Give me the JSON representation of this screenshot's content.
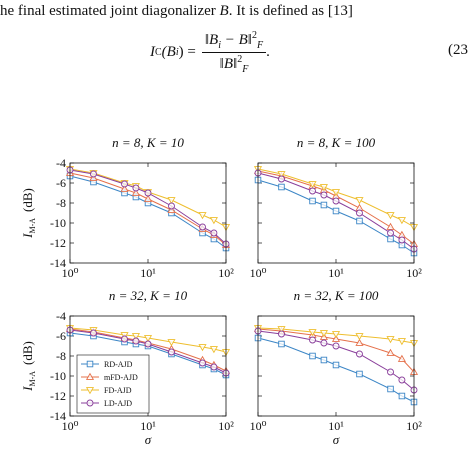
{
  "paragraph": {
    "before": "he final estimated joint diagonalizer ",
    "symbol": "B",
    "after": ". It is defined as [13]"
  },
  "equation": {
    "lhs": "I",
    "lhs_sub": "C",
    "lhs_arg": "(B",
    "lhs_arg_sub": "i",
    "lhs_close": ") =",
    "num_open": "‖B",
    "num_sub": "i",
    "num_rest": " − B‖",
    "den": "‖B‖",
    "norm_sup": "2",
    "norm_sub": "F",
    "end": ".",
    "number": "(23"
  },
  "chart_data": [
    {
      "type": "line",
      "title": "n = 8,  K = 10",
      "ylabel": {
        "symbol": "I",
        "subscript": "M-A",
        "unit": "(dB)"
      },
      "x": [
        1,
        2,
        5,
        7,
        10,
        20,
        50,
        70,
        100
      ],
      "xlim": [
        1,
        100
      ],
      "xscale": "log",
      "xticks": [
        {
          "value": 1,
          "label": "10⁰"
        },
        {
          "value": 10,
          "label": "10¹"
        },
        {
          "value": 100,
          "label": "10²"
        }
      ],
      "ylim": [
        -14,
        -4
      ],
      "yticks": [
        -14,
        -12,
        -10,
        -8,
        -6,
        -4
      ],
      "series": [
        {
          "color": "#3c86c6",
          "marker": "square",
          "values": [
            -5.3,
            -5.9,
            -7.0,
            -7.4,
            -8.0,
            -9.0,
            -11.0,
            -11.6,
            -12.5
          ]
        },
        {
          "color": "#e5704a",
          "marker": "triangle",
          "values": [
            -5.0,
            -5.5,
            -6.6,
            -7.0,
            -7.6,
            -8.7,
            -10.6,
            -11.2,
            -12.2
          ]
        },
        {
          "color": "#eebe2e",
          "marker": "triangle-down",
          "values": [
            -4.6,
            -5.0,
            -6.0,
            -6.3,
            -6.9,
            -7.7,
            -9.2,
            -9.7,
            -10.4
          ]
        },
        {
          "color": "#8a3f9b",
          "marker": "circle",
          "values": [
            -4.7,
            -5.1,
            -6.1,
            -6.5,
            -7.0,
            -8.3,
            -10.4,
            -11.0,
            -12.1
          ]
        }
      ]
    },
    {
      "type": "line",
      "title": "n = 8,  K = 100",
      "x": [
        1,
        2,
        5,
        7,
        10,
        20,
        50,
        70,
        100
      ],
      "xlim": [
        1,
        100
      ],
      "xscale": "log",
      "xticks": [
        {
          "value": 1,
          "label": "10⁰"
        },
        {
          "value": 10,
          "label": "10¹"
        },
        {
          "value": 100,
          "label": "10²"
        }
      ],
      "ylim": [
        -14,
        -4
      ],
      "series": [
        {
          "color": "#3c86c6",
          "marker": "square",
          "values": [
            -5.7,
            -6.4,
            -7.8,
            -8.2,
            -8.8,
            -9.8,
            -11.6,
            -12.2,
            -13.0
          ]
        },
        {
          "color": "#e5704a",
          "marker": "triangle",
          "values": [
            -4.8,
            -5.3,
            -6.3,
            -6.7,
            -7.3,
            -8.5,
            -10.4,
            -11.2,
            -12.1
          ]
        },
        {
          "color": "#eebe2e",
          "marker": "triangle-down",
          "values": [
            -4.6,
            -5.1,
            -6.1,
            -6.4,
            -6.9,
            -7.7,
            -9.2,
            -9.7,
            -10.4
          ]
        },
        {
          "color": "#8a3f9b",
          "marker": "circle",
          "values": [
            -5.0,
            -5.6,
            -6.8,
            -7.2,
            -7.8,
            -9.0,
            -11.0,
            -11.7,
            -12.6
          ]
        }
      ]
    },
    {
      "type": "line",
      "title": "n = 32,  K = 10",
      "ylabel": {
        "symbol": "I",
        "subscript": "M-A",
        "unit": "(dB)"
      },
      "xlabel": "σ",
      "x": [
        1,
        2,
        5,
        7,
        10,
        20,
        50,
        70,
        100
      ],
      "xlim": [
        1,
        100
      ],
      "xscale": "log",
      "xticks": [
        {
          "value": 1,
          "label": "10⁰"
        },
        {
          "value": 10,
          "label": "10¹"
        },
        {
          "value": 100,
          "label": "10²"
        }
      ],
      "ylim": [
        -14,
        -4
      ],
      "yticks": [
        -14,
        -12,
        -10,
        -8,
        -6,
        -4
      ],
      "legend": "lower left",
      "series": [
        {
          "name": "RD-AJD",
          "color": "#3c86c6",
          "marker": "square",
          "values": [
            -5.7,
            -6.0,
            -6.6,
            -6.8,
            -7.0,
            -7.8,
            -8.9,
            -9.3,
            -9.9
          ]
        },
        {
          "name": "mFD-AJD",
          "color": "#e5704a",
          "marker": "triangle",
          "values": [
            -5.3,
            -5.6,
            -6.2,
            -6.4,
            -6.7,
            -7.3,
            -8.4,
            -8.9,
            -9.5
          ]
        },
        {
          "name": "FD-AJD",
          "color": "#eebe2e",
          "marker": "triangle-down",
          "values": [
            -5.2,
            -5.4,
            -5.9,
            -6.0,
            -6.2,
            -6.6,
            -7.1,
            -7.3,
            -7.6
          ]
        },
        {
          "name": "LD-AJD",
          "color": "#8a3f9b",
          "marker": "circle",
          "values": [
            -5.4,
            -5.7,
            -6.3,
            -6.5,
            -6.8,
            -7.6,
            -8.7,
            -9.1,
            -9.7
          ]
        }
      ]
    },
    {
      "type": "line",
      "title": "n = 32,  K = 100",
      "xlabel": "σ",
      "x": [
        1,
        2,
        5,
        7,
        10,
        20,
        50,
        70,
        100
      ],
      "xlim": [
        1,
        100
      ],
      "xscale": "log",
      "xticks": [
        {
          "value": 1,
          "label": "10⁰"
        },
        {
          "value": 10,
          "label": "10¹"
        },
        {
          "value": 100,
          "label": "10²"
        }
      ],
      "ylim": [
        -14,
        -4
      ],
      "series": [
        {
          "color": "#3c86c6",
          "marker": "square",
          "values": [
            -6.2,
            -6.8,
            -8.0,
            -8.4,
            -8.9,
            -9.8,
            -11.3,
            -12.0,
            -12.6
          ]
        },
        {
          "color": "#e5704a",
          "marker": "triangle",
          "values": [
            -5.3,
            -5.5,
            -5.9,
            -6.1,
            -6.3,
            -6.7,
            -7.7,
            -8.3,
            -9.6
          ]
        },
        {
          "color": "#eebe2e",
          "marker": "triangle-down",
          "values": [
            -5.2,
            -5.3,
            -5.6,
            -5.7,
            -5.8,
            -6.0,
            -6.3,
            -6.5,
            -6.7
          ]
        },
        {
          "color": "#8a3f9b",
          "marker": "circle",
          "values": [
            -5.5,
            -5.8,
            -6.4,
            -6.7,
            -7.0,
            -7.8,
            -9.6,
            -10.4,
            -11.4
          ]
        }
      ]
    }
  ]
}
